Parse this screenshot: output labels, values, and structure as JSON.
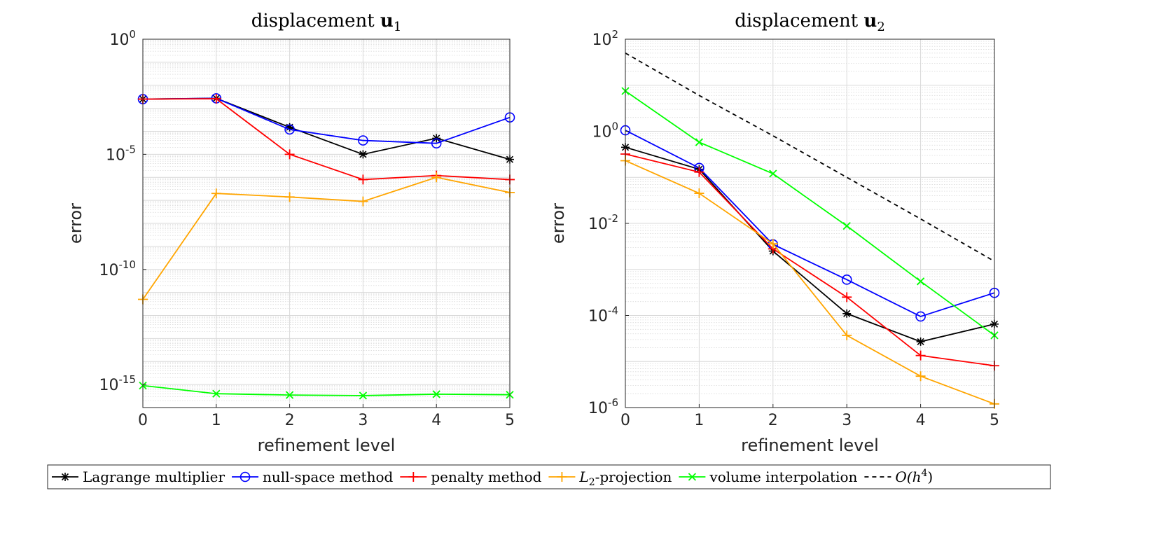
{
  "chart_data": [
    {
      "type": "line",
      "title": "displacement u",
      "title_subscript": "1",
      "xlabel": "refinement level",
      "ylabel": "error",
      "yscale": "log",
      "x": [
        0,
        1,
        2,
        3,
        4,
        5
      ],
      "xlim": [
        0,
        5
      ],
      "ylim": [
        1e-16,
        1
      ],
      "yticks": [
        {
          "exp": 0,
          "label": "10",
          "sup": "0"
        },
        {
          "exp": -5,
          "label": "10",
          "sup": "-5"
        },
        {
          "exp": -10,
          "label": "10",
          "sup": "-10"
        },
        {
          "exp": -15,
          "label": "10",
          "sup": "-15"
        }
      ],
      "xticks": [
        "0",
        "1",
        "2",
        "3",
        "4",
        "5"
      ],
      "grid": true,
      "series": [
        {
          "name": "Lagrange multiplier",
          "color": "#000000",
          "marker": "star",
          "values": [
            0.0025,
            0.0027,
            0.00015,
            1e-05,
            5e-05,
            6e-06
          ]
        },
        {
          "name": "null-space method",
          "color": "#0000ff",
          "marker": "circle",
          "values": [
            0.0025,
            0.0027,
            0.00012,
            4e-05,
            3e-05,
            0.0004
          ]
        },
        {
          "name": "penalty method",
          "color": "#ff0000",
          "marker": "plus",
          "values": [
            0.0025,
            0.0026,
            1e-05,
            8e-07,
            1.2e-06,
            8e-07
          ]
        },
        {
          "name": "L2-projection",
          "color": "#ffa500",
          "marker": "plus",
          "values": [
            5e-12,
            2e-07,
            1.4e-07,
            9e-08,
            1e-06,
            2.2e-07
          ]
        },
        {
          "name": "volume interpolation",
          "color": "#00ff00",
          "marker": "x",
          "values": [
            9e-16,
            4e-16,
            3.5e-16,
            3.3e-16,
            3.8e-16,
            3.6e-16
          ]
        }
      ]
    },
    {
      "type": "line",
      "title": "displacement u",
      "title_subscript": "2",
      "xlabel": "refinement level",
      "ylabel": "error",
      "yscale": "log",
      "x": [
        0,
        1,
        2,
        3,
        4,
        5
      ],
      "xlim": [
        0,
        5
      ],
      "ylim": [
        1e-06,
        100
      ],
      "yticks": [
        {
          "exp": 2,
          "label": "10",
          "sup": "2"
        },
        {
          "exp": 0,
          "label": "10",
          "sup": "0"
        },
        {
          "exp": -2,
          "label": "10",
          "sup": "-2"
        },
        {
          "exp": -4,
          "label": "10",
          "sup": "-4"
        },
        {
          "exp": -6,
          "label": "10",
          "sup": "-6"
        }
      ],
      "xticks": [
        "0",
        "1",
        "2",
        "3",
        "4",
        "5"
      ],
      "grid": true,
      "series": [
        {
          "name": "Lagrange multiplier",
          "color": "#000000",
          "marker": "star",
          "values": [
            0.45,
            0.15,
            0.0025,
            0.00011,
            2.7e-05,
            6.5e-05
          ]
        },
        {
          "name": "null-space method",
          "color": "#0000ff",
          "marker": "circle",
          "values": [
            1.05,
            0.16,
            0.0035,
            0.0006,
            9.5e-05,
            0.00031
          ]
        },
        {
          "name": "penalty method",
          "color": "#ff0000",
          "marker": "plus",
          "values": [
            0.32,
            0.13,
            0.0028,
            0.00025,
            1.35e-05,
            8.1e-06
          ]
        },
        {
          "name": "L2-projection",
          "color": "#ffa500",
          "marker": "plus",
          "values": [
            0.23,
            0.045,
            0.0036,
            3.7e-05,
            4.8e-06,
            1.2e-06
          ]
        },
        {
          "name": "volume interpolation",
          "color": "#00ff00",
          "marker": "x",
          "values": [
            7.5,
            0.58,
            0.12,
            0.0088,
            0.00055,
            3.7e-05
          ]
        },
        {
          "name": "O(h^4)",
          "color": "#000000",
          "marker": "none",
          "dash": true,
          "values": [
            50,
            6,
            0.8,
            0.1,
            0.0125,
            0.0015
          ]
        }
      ]
    }
  ],
  "legend": {
    "placement": "bottom",
    "entries": [
      {
        "label": "Lagrange multiplier",
        "color": "#000000",
        "marker": "star"
      },
      {
        "label": "null-space method",
        "color": "#0000ff",
        "marker": "circle"
      },
      {
        "label": "penalty method",
        "color": "#ff0000",
        "marker": "plus"
      },
      {
        "label_pre": "L",
        "label_sub": "2",
        "label_post": "-projection",
        "color": "#ffa500",
        "marker": "plus"
      },
      {
        "label": "volume interpolation",
        "color": "#00ff00",
        "marker": "x"
      },
      {
        "label_pre": "O(h",
        "label_sup": "4",
        "label_post": ")",
        "color": "#000000",
        "marker": "none",
        "dash": true
      }
    ]
  }
}
